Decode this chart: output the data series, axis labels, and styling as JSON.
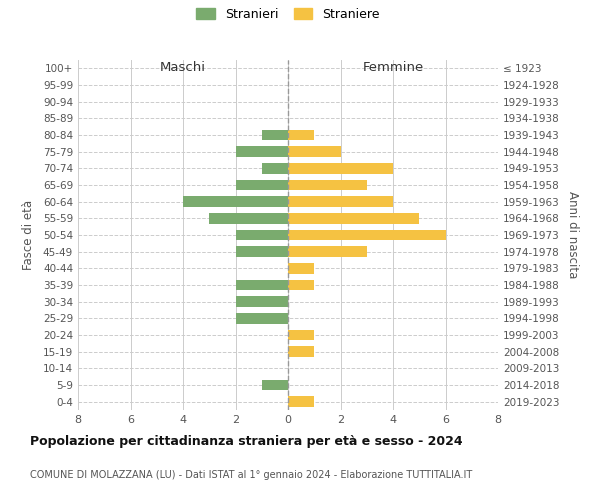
{
  "age_groups": [
    "100+",
    "95-99",
    "90-94",
    "85-89",
    "80-84",
    "75-79",
    "70-74",
    "65-69",
    "60-64",
    "55-59",
    "50-54",
    "45-49",
    "40-44",
    "35-39",
    "30-34",
    "25-29",
    "20-24",
    "15-19",
    "10-14",
    "5-9",
    "0-4"
  ],
  "birth_years": [
    "≤ 1923",
    "1924-1928",
    "1929-1933",
    "1934-1938",
    "1939-1943",
    "1944-1948",
    "1949-1953",
    "1954-1958",
    "1959-1963",
    "1964-1968",
    "1969-1973",
    "1974-1978",
    "1979-1983",
    "1984-1988",
    "1989-1993",
    "1994-1998",
    "1999-2003",
    "2004-2008",
    "2009-2013",
    "2014-2018",
    "2019-2023"
  ],
  "maschi": [
    0,
    0,
    0,
    0,
    1,
    2,
    1,
    2,
    4,
    3,
    2,
    2,
    0,
    2,
    2,
    2,
    0,
    0,
    0,
    1,
    0
  ],
  "femmine": [
    0,
    0,
    0,
    0,
    1,
    2,
    4,
    3,
    4,
    5,
    6,
    3,
    1,
    1,
    0,
    0,
    1,
    1,
    0,
    0,
    1
  ],
  "color_maschi": "#7aab6e",
  "color_femmine": "#f5c242",
  "title_main": "Popolazione per cittadinanza straniera per età e sesso - 2024",
  "title_sub": "COMUNE DI MOLAZZANA (LU) - Dati ISTAT al 1° gennaio 2024 - Elaborazione TUTTITALIA.IT",
  "label_maschi": "Maschi",
  "label_femmine": "Femmine",
  "legend_stranieri": "Stranieri",
  "legend_straniere": "Straniere",
  "ylabel_left": "Fasce di età",
  "ylabel_right": "Anni di nascita",
  "xlim": 8,
  "background_color": "#ffffff",
  "grid_color": "#cccccc"
}
